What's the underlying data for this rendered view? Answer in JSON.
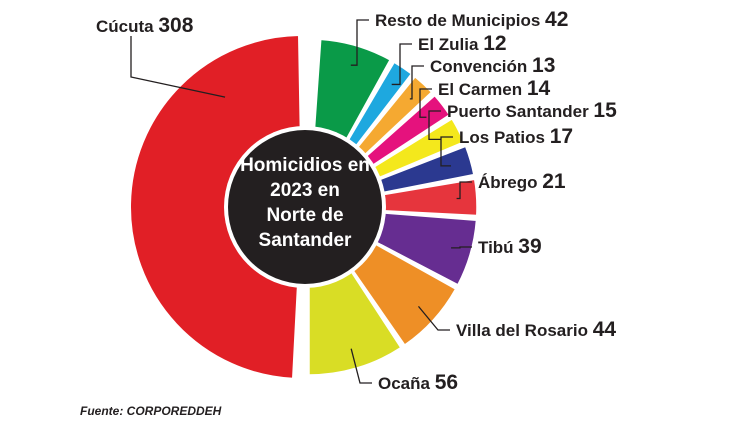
{
  "chart_data": {
    "type": "pie",
    "title": "Homicidios en 2023 en Norte de Santander",
    "title_lines": [
      "Homicidios en",
      "2023 en",
      "Norte de",
      "Santander"
    ],
    "source": "Fuente: CORPOREDDEH",
    "slices": [
      {
        "label": "Cúcuta",
        "value": 308,
        "color": "#e11f26"
      },
      {
        "label": "Resto de Municipios",
        "value": 42,
        "color": "#0a9a48"
      },
      {
        "label": "El Zulia",
        "value": 12,
        "color": "#1ea8df"
      },
      {
        "label": "Convención",
        "value": 13,
        "color": "#f5a931"
      },
      {
        "label": "El Carmen",
        "value": 14,
        "color": "#e5127d"
      },
      {
        "label": "Puerto Santander",
        "value": 15,
        "color": "#f4e81c"
      },
      {
        "label": "Los Patios",
        "value": 17,
        "color": "#2b3990"
      },
      {
        "label": "Ábrego",
        "value": 21,
        "color": "#e6353d"
      },
      {
        "label": "Tibú",
        "value": 39,
        "color": "#662d91"
      },
      {
        "label": "Villa del Rosario",
        "value": 44,
        "color": "#ee8f26"
      },
      {
        "label": "Ocaña",
        "value": 56,
        "color": "#d9dd25"
      }
    ]
  }
}
